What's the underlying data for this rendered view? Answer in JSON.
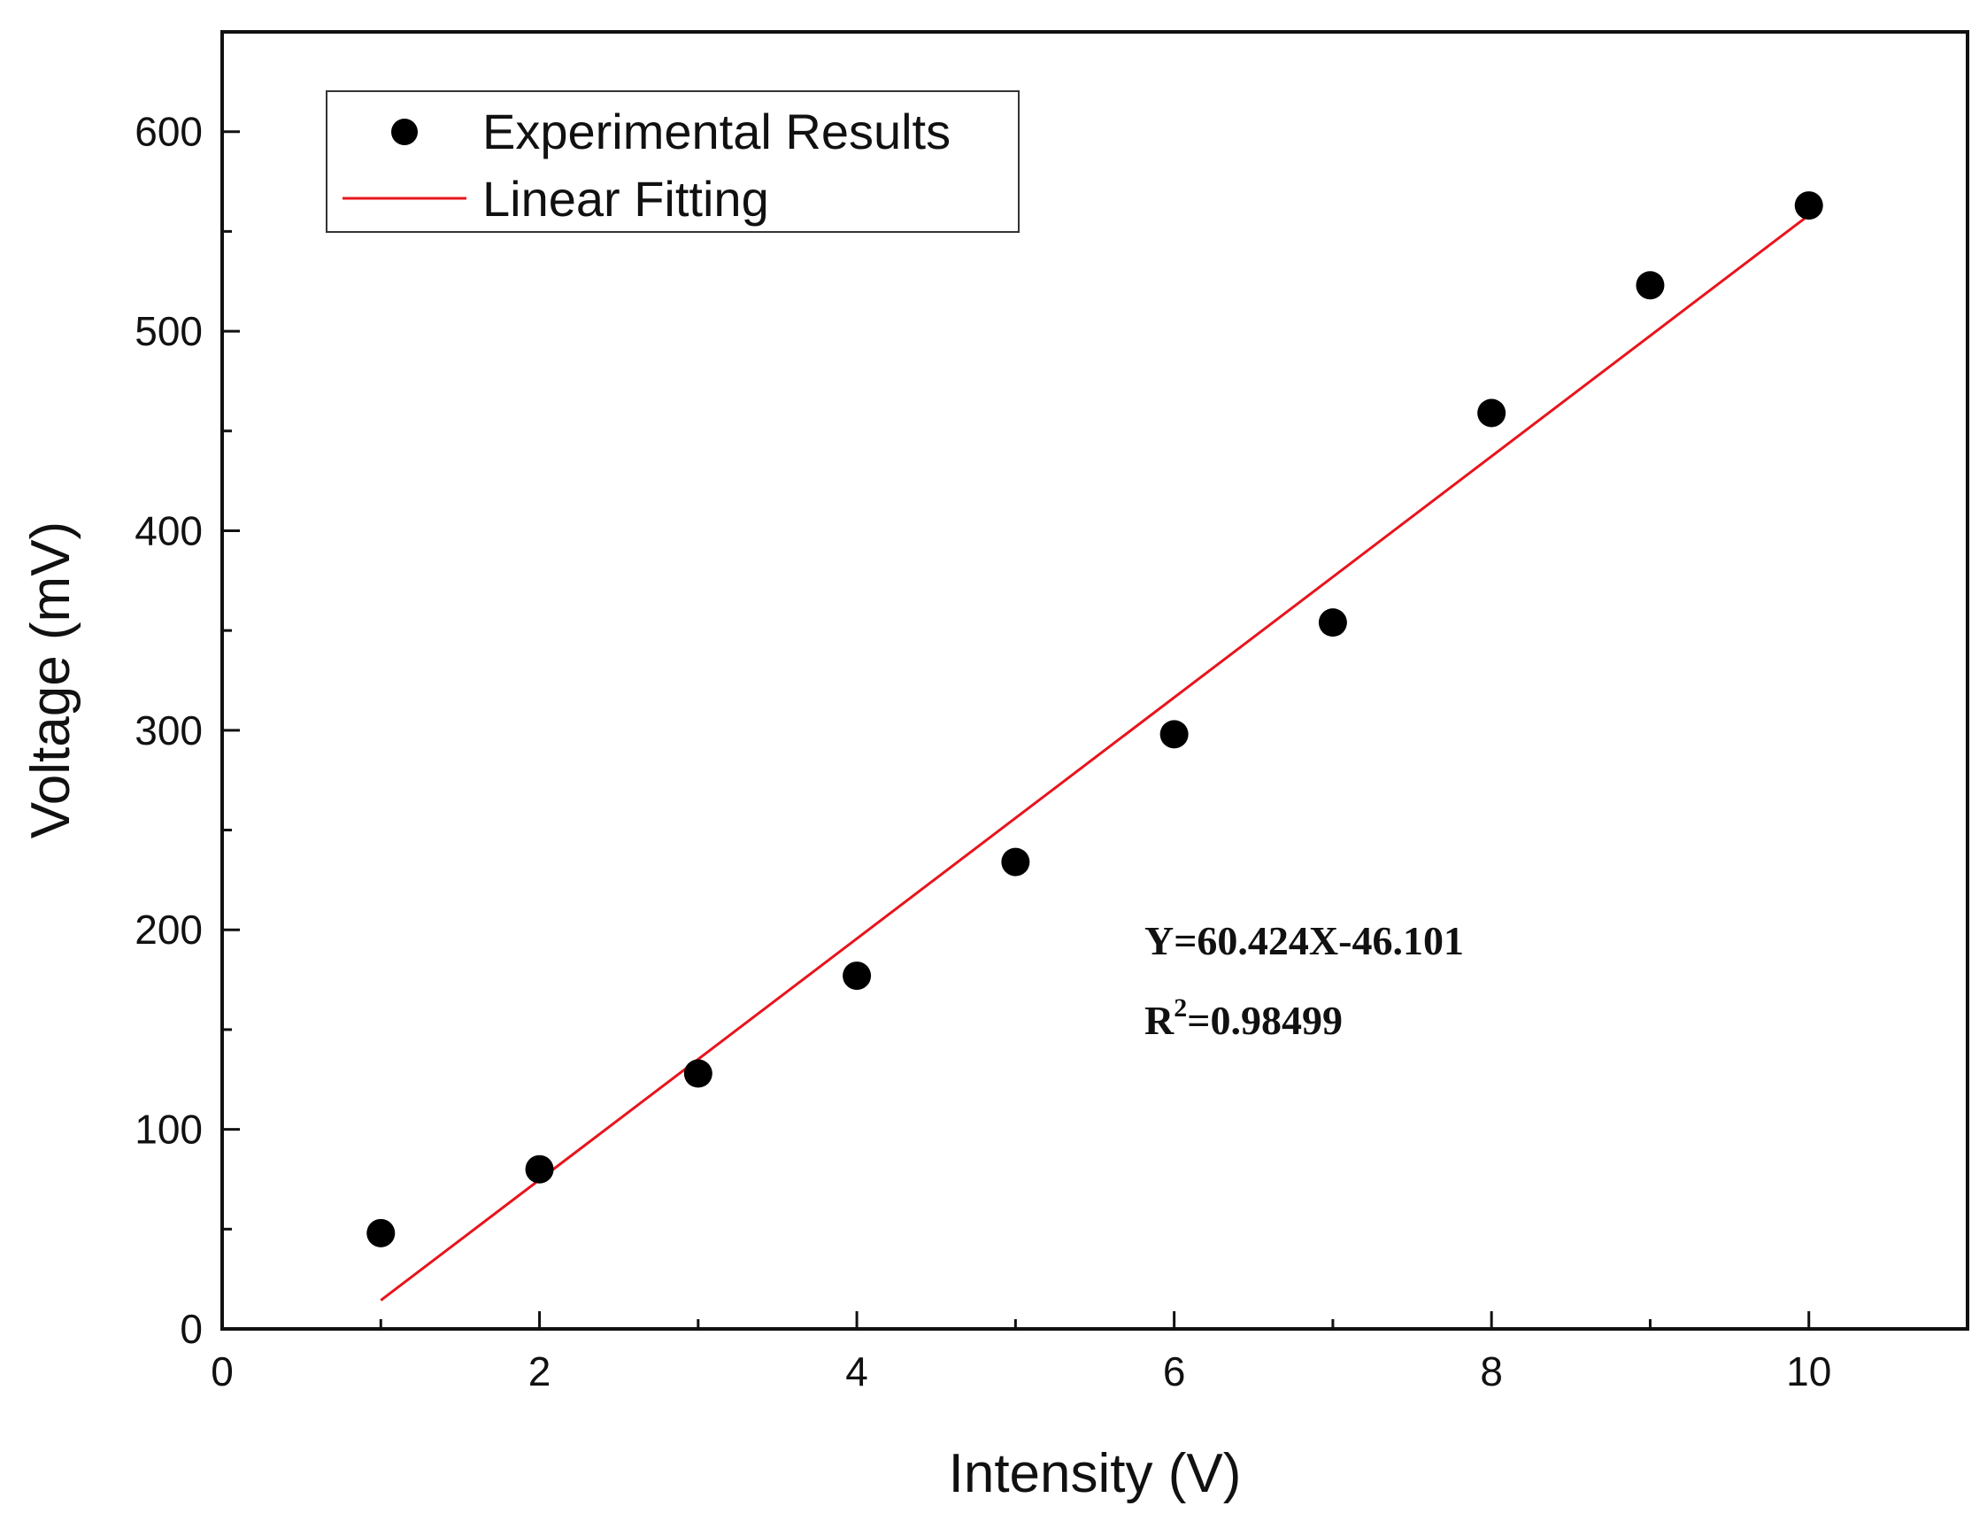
{
  "chart_data": {
    "type": "scatter",
    "title": "",
    "xlabel": "Intensity (V)",
    "ylabel": "Voltage (mV)",
    "xlim": [
      0,
      11
    ],
    "ylim": [
      0,
      650
    ],
    "xticks": [
      0,
      2,
      4,
      6,
      8,
      10
    ],
    "xtick_labels": [
      "0",
      "2",
      "4",
      "6",
      "8",
      "10"
    ],
    "yticks": [
      0,
      100,
      200,
      300,
      400,
      500,
      600
    ],
    "ytick_labels": [
      "0",
      "100",
      "200",
      "300",
      "400",
      "500",
      "600"
    ],
    "grid": false,
    "legend_position": "top-left",
    "series": [
      {
        "name": "Experimental Results",
        "kind": "scatter",
        "color": "#000000",
        "x": [
          1,
          2,
          3,
          4,
          5,
          6,
          7,
          8,
          9,
          10
        ],
        "y": [
          48,
          80,
          128,
          177,
          234,
          298,
          354,
          459,
          523,
          563
        ]
      },
      {
        "name": "Linear Fitting",
        "kind": "line",
        "color": "#e8141c",
        "x": [
          1,
          10
        ],
        "y": [
          14.323,
          558.139
        ]
      }
    ],
    "annotations": {
      "equation": "Y=60.424X-46.101",
      "r2_prefix": "R",
      "r2_sup": "2",
      "r2_value": "=0.98499"
    }
  }
}
